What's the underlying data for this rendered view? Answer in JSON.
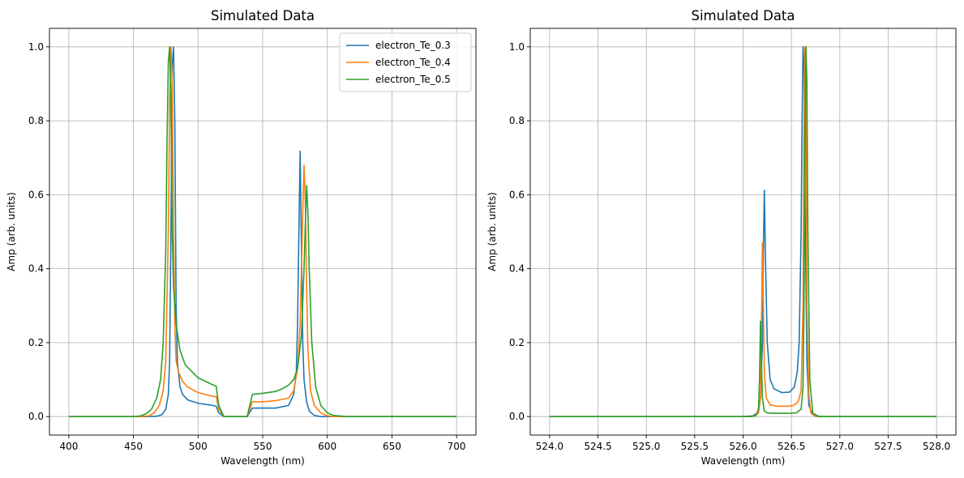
{
  "colors": {
    "series_0": "#1f77b4",
    "series_1": "#ff7f0e",
    "series_2": "#2ca02c",
    "grid": "#b0b0b0"
  },
  "chart_data": [
    {
      "type": "line",
      "title": "Simulated Data",
      "xlabel": "Wavelength (nm)",
      "ylabel": "Amp (arb. units)",
      "xlim": [
        385,
        715
      ],
      "ylim": [
        -0.05,
        1.05
      ],
      "xticks": [
        400,
        450,
        500,
        550,
        600,
        650,
        700
      ],
      "xtick_labels": [
        "400",
        "450",
        "500",
        "550",
        "600",
        "650",
        "700"
      ],
      "yticks": [
        0.0,
        0.2,
        0.4,
        0.6,
        0.8,
        1.0
      ],
      "ytick_labels": [
        "0.0",
        "0.2",
        "0.4",
        "0.6",
        "0.8",
        "1.0"
      ],
      "grid": true,
      "legend": "top-right",
      "series": [
        {
          "name": "electron_Te_0.3",
          "x": [
            400,
            460,
            468,
            472,
            475,
            477,
            478,
            479,
            480,
            481,
            482,
            483,
            484,
            486,
            488,
            492,
            500,
            510,
            514,
            516,
            520,
            530,
            538,
            542,
            550,
            560,
            570,
            574,
            576,
            577,
            578,
            579,
            580,
            581,
            582,
            584,
            586,
            590,
            595,
            600,
            620,
            650,
            700
          ],
          "y": [
            0,
            0,
            0.001,
            0.005,
            0.02,
            0.06,
            0.15,
            0.5,
            0.95,
            1.0,
            0.8,
            0.3,
            0.15,
            0.08,
            0.06,
            0.045,
            0.036,
            0.031,
            0.028,
            0.01,
            0,
            0,
            0,
            0.023,
            0.023,
            0.023,
            0.03,
            0.06,
            0.12,
            0.25,
            0.5,
            0.718,
            0.45,
            0.2,
            0.1,
            0.04,
            0.015,
            0.003,
            0,
            0,
            0,
            0,
            0
          ]
        },
        {
          "name": "electron_Te_0.4",
          "x": [
            400,
            455,
            462,
            466,
            470,
            473,
            475,
            477,
            478,
            479,
            480,
            481,
            482,
            483,
            485,
            488,
            492,
            500,
            510,
            514,
            516,
            520,
            530,
            538,
            542,
            550,
            560,
            570,
            574,
            577,
            579,
            580,
            581,
            582,
            583,
            584,
            585,
            587,
            590,
            595,
            600,
            605,
            650,
            700
          ],
          "y": [
            0,
            0,
            0.002,
            0.01,
            0.03,
            0.07,
            0.15,
            0.5,
            0.85,
            1.0,
            0.9,
            0.5,
            0.25,
            0.15,
            0.12,
            0.095,
            0.08,
            0.065,
            0.056,
            0.054,
            0.02,
            0,
            0,
            0,
            0.04,
            0.04,
            0.043,
            0.05,
            0.07,
            0.13,
            0.25,
            0.4,
            0.55,
            0.68,
            0.58,
            0.35,
            0.18,
            0.07,
            0.03,
            0.01,
            0.002,
            0,
            0,
            0
          ]
        },
        {
          "name": "electron_Te_0.5",
          "x": [
            400,
            450,
            456,
            460,
            464,
            468,
            471,
            473,
            475,
            476,
            477,
            478,
            479,
            480,
            481,
            483,
            486,
            490,
            500,
            510,
            514,
            516,
            520,
            530,
            538,
            542,
            550,
            560,
            565,
            570,
            574,
            577,
            580,
            582,
            583,
            584,
            585,
            586,
            588,
            591,
            595,
            600,
            605,
            615,
            650,
            700
          ],
          "y": [
            0,
            0,
            0.002,
            0.008,
            0.02,
            0.05,
            0.1,
            0.2,
            0.45,
            0.75,
            0.96,
            1.0,
            0.85,
            0.5,
            0.35,
            0.25,
            0.18,
            0.14,
            0.105,
            0.088,
            0.082,
            0.03,
            0,
            0,
            0,
            0.06,
            0.063,
            0.068,
            0.075,
            0.085,
            0.1,
            0.13,
            0.22,
            0.4,
            0.52,
            0.625,
            0.55,
            0.4,
            0.2,
            0.08,
            0.03,
            0.01,
            0.003,
            0,
            0,
            0
          ]
        }
      ]
    },
    {
      "type": "line",
      "title": "Simulated Data",
      "xlabel": "Wavelength (nm)",
      "ylabel": "Amp (arb. units)",
      "xlim": [
        523.8,
        528.2
      ],
      "ylim": [
        -0.05,
        1.05
      ],
      "xticks": [
        524.0,
        524.5,
        525.0,
        525.5,
        526.0,
        526.5,
        527.0,
        527.5,
        528.0
      ],
      "xtick_labels": [
        "524.0",
        "524.5",
        "525.0",
        "525.5",
        "526.0",
        "526.5",
        "527.0",
        "527.5",
        "528.0"
      ],
      "yticks": [
        0.0,
        0.2,
        0.4,
        0.6,
        0.8,
        1.0
      ],
      "ytick_labels": [
        "0.0",
        "0.2",
        "0.4",
        "0.6",
        "0.8",
        "1.0"
      ],
      "grid": true,
      "legend": "none",
      "series": [
        {
          "name": "electron_Te_0.3",
          "x": [
            524.0,
            526.0,
            526.1,
            526.15,
            526.18,
            526.2,
            526.21,
            526.22,
            526.23,
            526.25,
            526.28,
            526.32,
            526.4,
            526.48,
            526.53,
            526.56,
            526.58,
            526.6,
            526.61,
            526.62,
            526.63,
            526.64,
            526.66,
            526.68,
            526.72,
            526.8,
            528.0
          ],
          "y": [
            0,
            0,
            0.002,
            0.01,
            0.05,
            0.2,
            0.45,
            0.612,
            0.45,
            0.2,
            0.1,
            0.075,
            0.065,
            0.066,
            0.08,
            0.12,
            0.2,
            0.5,
            0.8,
            1.0,
            0.95,
            0.6,
            0.15,
            0.03,
            0.005,
            0,
            0
          ]
        },
        {
          "name": "electron_Te_0.4",
          "x": [
            524.0,
            526.05,
            526.12,
            526.16,
            526.18,
            526.19,
            526.2,
            526.21,
            526.22,
            526.24,
            526.28,
            526.35,
            526.45,
            526.52,
            526.57,
            526.6,
            526.62,
            526.63,
            526.64,
            526.65,
            526.66,
            526.68,
            526.7,
            526.75,
            528.0
          ],
          "y": [
            0,
            0,
            0.002,
            0.01,
            0.05,
            0.25,
            0.47,
            0.3,
            0.12,
            0.05,
            0.032,
            0.028,
            0.028,
            0.03,
            0.04,
            0.07,
            0.3,
            0.8,
            1.0,
            0.8,
            0.3,
            0.06,
            0.01,
            0,
            0
          ]
        },
        {
          "name": "electron_Te_0.5",
          "x": [
            524.0,
            526.08,
            526.13,
            526.16,
            526.17,
            526.18,
            526.19,
            526.2,
            526.22,
            526.25,
            526.3,
            526.4,
            526.5,
            526.55,
            526.6,
            526.62,
            526.63,
            526.64,
            526.65,
            526.66,
            526.67,
            526.69,
            526.72,
            526.78,
            528.0
          ],
          "y": [
            0,
            0,
            0.002,
            0.02,
            0.1,
            0.258,
            0.15,
            0.05,
            0.015,
            0.01,
            0.009,
            0.009,
            0.009,
            0.01,
            0.02,
            0.08,
            0.3,
            0.7,
            1.0,
            0.9,
            0.5,
            0.1,
            0.01,
            0,
            0
          ]
        }
      ]
    }
  ]
}
